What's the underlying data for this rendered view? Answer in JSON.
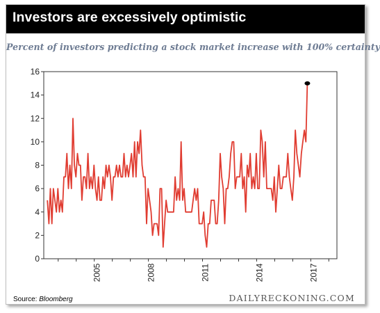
{
  "header": {
    "title": "Investors are excessively optimistic"
  },
  "chart_data": {
    "type": "line",
    "title": "Investors are excessively optimistic",
    "subtitle": "Percent of investors predicting a stock market increase with 100% certainty",
    "xlabel": "",
    "ylabel": "",
    "ylim": [
      0,
      16
    ],
    "xlim": [
      2002.2,
      2018.45
    ],
    "yticks": [
      0,
      2,
      4,
      6,
      8,
      10,
      12,
      14,
      16
    ],
    "xticks": [
      "2005",
      "2008",
      "2011",
      "2014",
      "2017"
    ],
    "grid": false,
    "legend": "none",
    "line_color": "#e03c31",
    "end_marker_color": "#000000",
    "series": [
      {
        "x_start": 2002.4,
        "x_step": 0.0833,
        "values": [
          5,
          3,
          6,
          3,
          6,
          5,
          4,
          6,
          4,
          5,
          4,
          7,
          7,
          9,
          6,
          8,
          6,
          12,
          8,
          7,
          9,
          8,
          8,
          5,
          7,
          7,
          6,
          9,
          6,
          7,
          6,
          8,
          6,
          5,
          7,
          5,
          5,
          7,
          6,
          8,
          7,
          8,
          7,
          5,
          7,
          7,
          8,
          7,
          8,
          7,
          7,
          9,
          7,
          8,
          7,
          8,
          9,
          7,
          10,
          7,
          10,
          9,
          11,
          8,
          7,
          7,
          3,
          6,
          5,
          4,
          2,
          3,
          3,
          3,
          2,
          6,
          6,
          1,
          3,
          5,
          4,
          4,
          4,
          4,
          4,
          7,
          5,
          6,
          5,
          10,
          5,
          6,
          4,
          4,
          4,
          4,
          4,
          5,
          6,
          5,
          6,
          3,
          3,
          3,
          4,
          2,
          1,
          3,
          3,
          5,
          5,
          5,
          3,
          3,
          5,
          9,
          7,
          6,
          3,
          6,
          6,
          7,
          9,
          10,
          10,
          6,
          7,
          7,
          7,
          9,
          6,
          7,
          4,
          8,
          7,
          9,
          6,
          7,
          6,
          9,
          6,
          6,
          11,
          10,
          7,
          10,
          6,
          6,
          6,
          6,
          5,
          7,
          4,
          6,
          8,
          6,
          6,
          7,
          7,
          7,
          9,
          7,
          6,
          5,
          7,
          11,
          9,
          8,
          7,
          9,
          10,
          11,
          10,
          15
        ]
      }
    ],
    "source_label": "Source:",
    "source": "Bloomberg",
    "brand": "DAILYRECKONING.COM"
  }
}
